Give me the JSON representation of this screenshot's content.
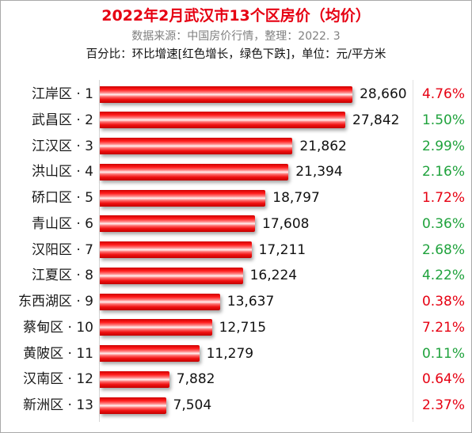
{
  "title": "2022年2月武汉市13个区房价（均价）",
  "source": "数据来源：中国房价行情，整理：2022. 3",
  "note": "百分比：环比增速[红色增长，绿色下跌]，单位：元/平方米",
  "colors": {
    "title": "#e60012",
    "up": "#e60012",
    "down": "#1fa23c",
    "bar": "#ff1a1a"
  },
  "chart_data": {
    "type": "bar",
    "orientation": "horizontal",
    "categories": [
      "江岸区 · 1",
      "武昌区 · 2",
      "江汉区 · 3",
      "洪山区 · 4",
      "硚口区 · 5",
      "青山区 · 6",
      "汉阳区 · 7",
      "江夏区 · 8",
      "东西湖区 · 9",
      "蔡甸区 · 10",
      "黄陂区 · 11",
      "汉南区 · 12",
      "新洲区 · 13"
    ],
    "values": [
      28660,
      27842,
      21862,
      21394,
      18797,
      17608,
      17211,
      16224,
      13637,
      12715,
      11279,
      7882,
      7504
    ],
    "value_labels": [
      "28,660",
      "27,842",
      "21,862",
      "21,394",
      "18,797",
      "17,608",
      "17,211",
      "16,224",
      "13,637",
      "12,715",
      "11,279",
      "7,882",
      "7,504"
    ],
    "changes": [
      "4.76%",
      "1.50%",
      "2.99%",
      "2.16%",
      "1.72%",
      "0.36%",
      "2.68%",
      "4.22%",
      "0.38%",
      "7.21%",
      "0.11%",
      "0.64%",
      "2.37%"
    ],
    "change_direction": [
      "up",
      "down",
      "down",
      "down",
      "up",
      "down",
      "down",
      "down",
      "up",
      "up",
      "down",
      "up",
      "up"
    ],
    "xlim": [
      0,
      30000
    ],
    "grid": false,
    "legend": "none"
  }
}
